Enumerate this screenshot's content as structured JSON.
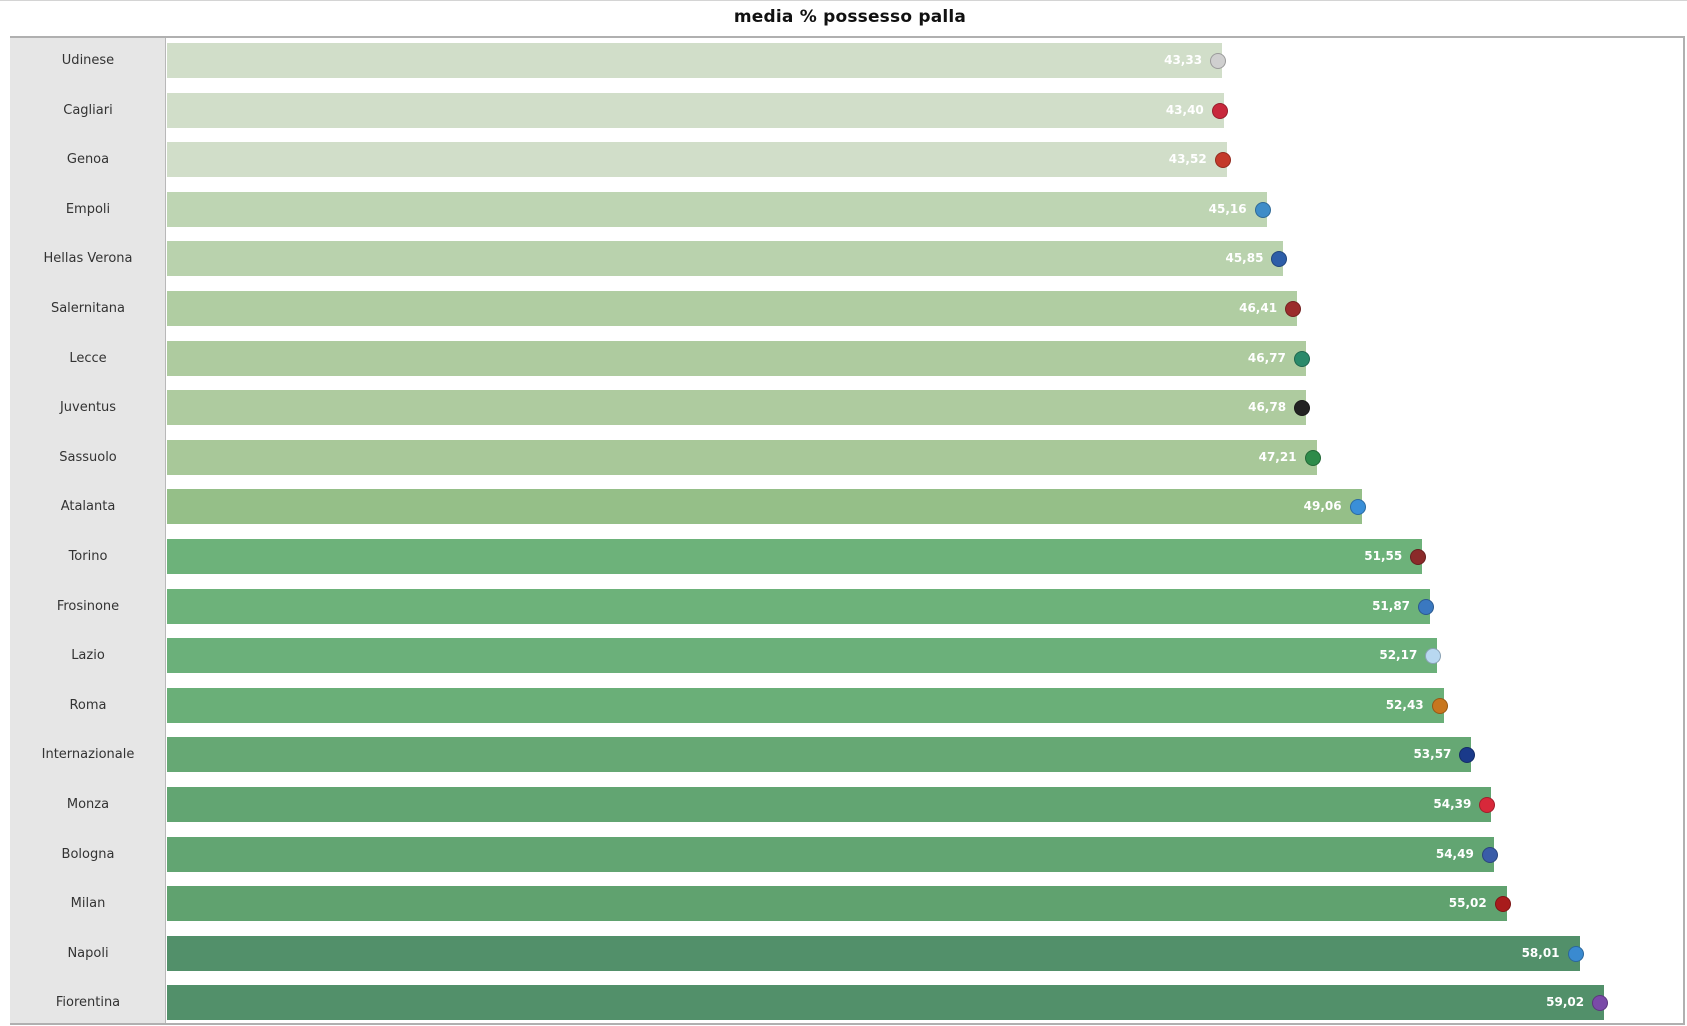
{
  "chart_data": {
    "type": "bar",
    "orientation": "horizontal",
    "title": "media % possesso palla",
    "xlabel": "",
    "ylabel": "",
    "grid": false,
    "legend": null,
    "value_format": "comma-decimal",
    "categories": [
      "Udinese",
      "Cagliari",
      "Genoa",
      "Empoli",
      "Hellas Verona",
      "Salernitana",
      "Lecce",
      "Juventus",
      "Sassuolo",
      "Atalanta",
      "Torino",
      "Frosinone",
      "Lazio",
      "Roma",
      "Internazionale",
      "Monza",
      "Bologna",
      "Milan",
      "Napoli",
      "Fiorentina"
    ],
    "values": [
      43.33,
      43.4,
      43.52,
      45.16,
      45.85,
      46.41,
      46.77,
      46.78,
      47.21,
      49.06,
      51.55,
      51.87,
      52.17,
      52.43,
      53.57,
      54.39,
      54.49,
      55.02,
      58.01,
      59.02
    ],
    "value_labels": [
      "43,33",
      "43,40",
      "43,52",
      "45,16",
      "45,85",
      "46,41",
      "46,77",
      "46,78",
      "47,21",
      "49,06",
      "51,55",
      "51,87",
      "52,17",
      "52,43",
      "53,57",
      "54,39",
      "54,49",
      "55,02",
      "58,01",
      "59,02"
    ],
    "bar_colors": [
      "#d1dec9",
      "#d1dec9",
      "#d1dec9",
      "#bed5b3",
      "#b9d2ad",
      "#b0cda2",
      "#aecb9f",
      "#aecb9f",
      "#a8c899",
      "#95bf88",
      "#6db27a",
      "#6db27a",
      "#6bb07a",
      "#6aaf78",
      "#66a874",
      "#62a572",
      "#62a572",
      "#60a26f",
      "#52906a",
      "#52906a"
    ],
    "team_logos": [
      "udinese-crest",
      "cagliari-crest",
      "genoa-crest",
      "empoli-crest",
      "hellas-verona-crest",
      "salernitana-crest",
      "lecce-crest",
      "juventus-crest",
      "sassuolo-crest",
      "atalanta-crest",
      "torino-crest",
      "frosinone-crest",
      "lazio-crest",
      "roma-crest",
      "internazionale-crest",
      "monza-crest",
      "bologna-crest",
      "milan-crest",
      "napoli-crest",
      "fiorentina-crest"
    ],
    "logo_colors": [
      "#cfcfcf",
      "#c8283c",
      "#c43a2a",
      "#3f8dc8",
      "#2d5ea8",
      "#9b2c2c",
      "#2a8a6a",
      "#222222",
      "#2e8b4a",
      "#3a8fd8",
      "#8b2a2a",
      "#3a78c0",
      "#b8d8f0",
      "#c8761e",
      "#1a3a8a",
      "#d8283a",
      "#3a5ca8",
      "#a81c1c",
      "#3a8ad0",
      "#7a4aa8"
    ]
  }
}
